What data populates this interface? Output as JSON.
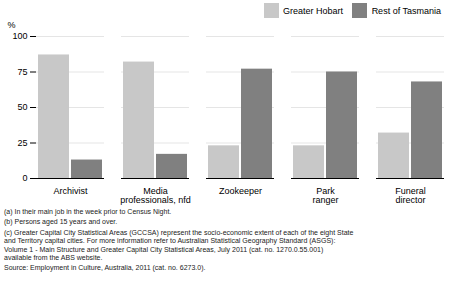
{
  "chart_data": {
    "type": "bar",
    "categories": [
      "Archivist",
      "Media\nprofessionals, nfd",
      "Zookeeper",
      "Park\nranger",
      "Funeral\ndirector"
    ],
    "series": [
      {
        "name": "Greater Hobart",
        "color": "#c8c8c8",
        "values": [
          87,
          82,
          23,
          23,
          32
        ]
      },
      {
        "name": "Rest of Tasmania",
        "color": "#808080",
        "values": [
          13,
          17,
          77,
          75,
          68
        ]
      }
    ],
    "ylabel": "%",
    "ylim": [
      0,
      100
    ],
    "yticks": [
      0,
      25,
      50,
      75,
      100
    ],
    "grid": true,
    "legend": "upper right",
    "annotations": [
      "(a) In their main job in the week prior to Census Night.",
      "(b) Persons aged  15 years and over.",
      "(c) Greater Capital City Statistical Areas (GCCSA) represent the socio-economic extent of each of the eight State\nand Territory capital cities. For more information refer to Australian Statistical Geography Standard (ASGS):\nVolume 1 - Main Structure and Greater Capital City Statistical Areas, July 2011 (cat. no. 1270.0.55.001)\navailable from the ABS website.",
      "Source: Employment in Culture, Australia, 2011 (cat. no. 6273.0)."
    ]
  }
}
